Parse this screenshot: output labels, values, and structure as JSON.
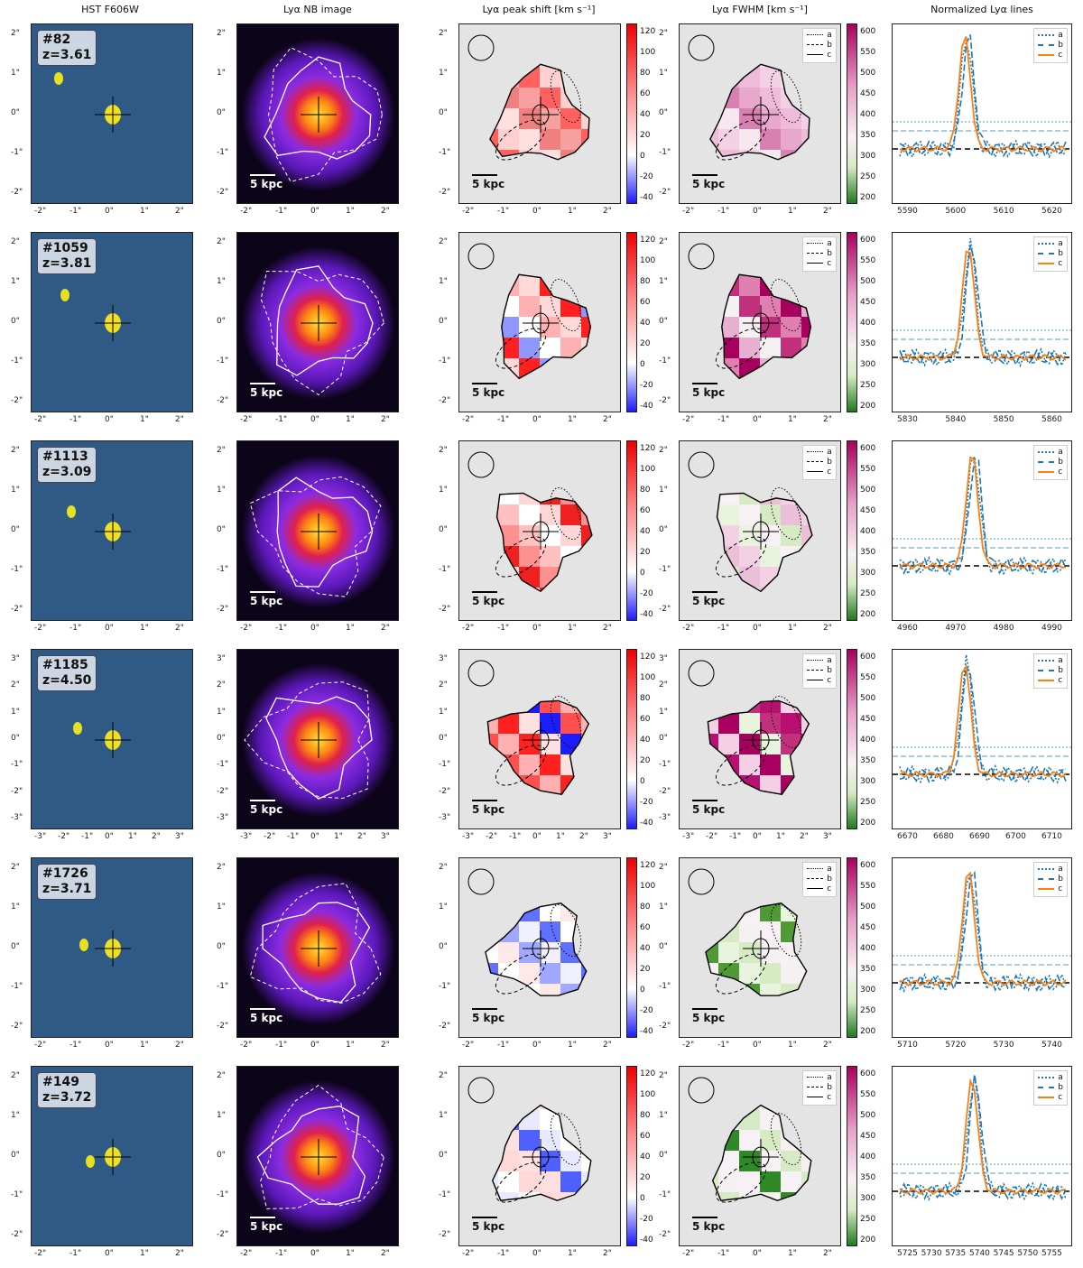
{
  "column_titles": [
    "HST F606W",
    "Lyα NB image",
    "Lyα peak shift [km s⁻¹]",
    "Lyα FWHM [km s⁻¹]",
    "Normalized Lyα lines"
  ],
  "scale_label": "5 kpc",
  "shift_colorbar_ticks": [
    "120",
    "100",
    "80",
    "60",
    "40",
    "20",
    "0",
    "-20",
    "-40"
  ],
  "fwhm_colorbar_ticks": [
    "600",
    "550",
    "500",
    "450",
    "400",
    "350",
    "300",
    "250",
    "200"
  ],
  "legend": [
    "a",
    "b",
    "c"
  ],
  "colors": {
    "hst_bg": "#2f5a86",
    "nb_bg": "#0c0418",
    "map_bg": "#e4e4e4",
    "series_a": "#1f77b4",
    "series_b": "#1f77b4",
    "series_c": "#ff7f0e"
  },
  "rows": [
    {
      "id": "#82",
      "z": "z=3.61",
      "img_ticks": [
        "-2\"",
        "-1\"",
        "0\"",
        "1\"",
        "2\""
      ],
      "y_ticks": [
        "2\"",
        "1\"",
        "0\"",
        "-1\"",
        "-2\""
      ],
      "spec_xticks": [
        "5590",
        "5600",
        "5610",
        "5620"
      ]
    },
    {
      "id": "#1059",
      "z": "z=3.81",
      "img_ticks": [
        "-2\"",
        "-1\"",
        "0\"",
        "1\"",
        "2\""
      ],
      "y_ticks": [
        "2\"",
        "1\"",
        "0\"",
        "-1\"",
        "-2\""
      ],
      "spec_xticks": [
        "5830",
        "5840",
        "5850",
        "5860"
      ]
    },
    {
      "id": "#1113",
      "z": "z=3.09",
      "img_ticks": [
        "-2\"",
        "-1\"",
        "0\"",
        "1\"",
        "2\""
      ],
      "y_ticks": [
        "2\"",
        "1\"",
        "0\"",
        "-1\"",
        "-2\""
      ],
      "spec_xticks": [
        "4960",
        "4970",
        "4980",
        "4990"
      ]
    },
    {
      "id": "#1185",
      "z": "z=4.50",
      "img_ticks": [
        "-3\"",
        "-2\"",
        "-1\"",
        "0\"",
        "1\"",
        "2\"",
        "3\""
      ],
      "y_ticks": [
        "3\"",
        "2\"",
        "1\"",
        "0\"",
        "-1\"",
        "-2\"",
        "-3\""
      ],
      "spec_xticks": [
        "6670",
        "6680",
        "6690",
        "6700",
        "6710"
      ]
    },
    {
      "id": "#1726",
      "z": "z=3.71",
      "img_ticks": [
        "-2\"",
        "-1\"",
        "0\"",
        "1\"",
        "2\""
      ],
      "y_ticks": [
        "2\"",
        "1\"",
        "0\"",
        "-1\"",
        "-2\""
      ],
      "spec_xticks": [
        "5710",
        "5720",
        "5730",
        "5740"
      ]
    },
    {
      "id": "#149",
      "z": "z=3.72",
      "img_ticks": [
        "-2\"",
        "-1\"",
        "0\"",
        "1\"",
        "2\""
      ],
      "y_ticks": [
        "2\"",
        "1\"",
        "0\"",
        "-1\"",
        "-2\""
      ],
      "spec_xticks": [
        "5725",
        "5730",
        "5735",
        "5740",
        "5745",
        "5750",
        "5755"
      ]
    }
  ]
}
